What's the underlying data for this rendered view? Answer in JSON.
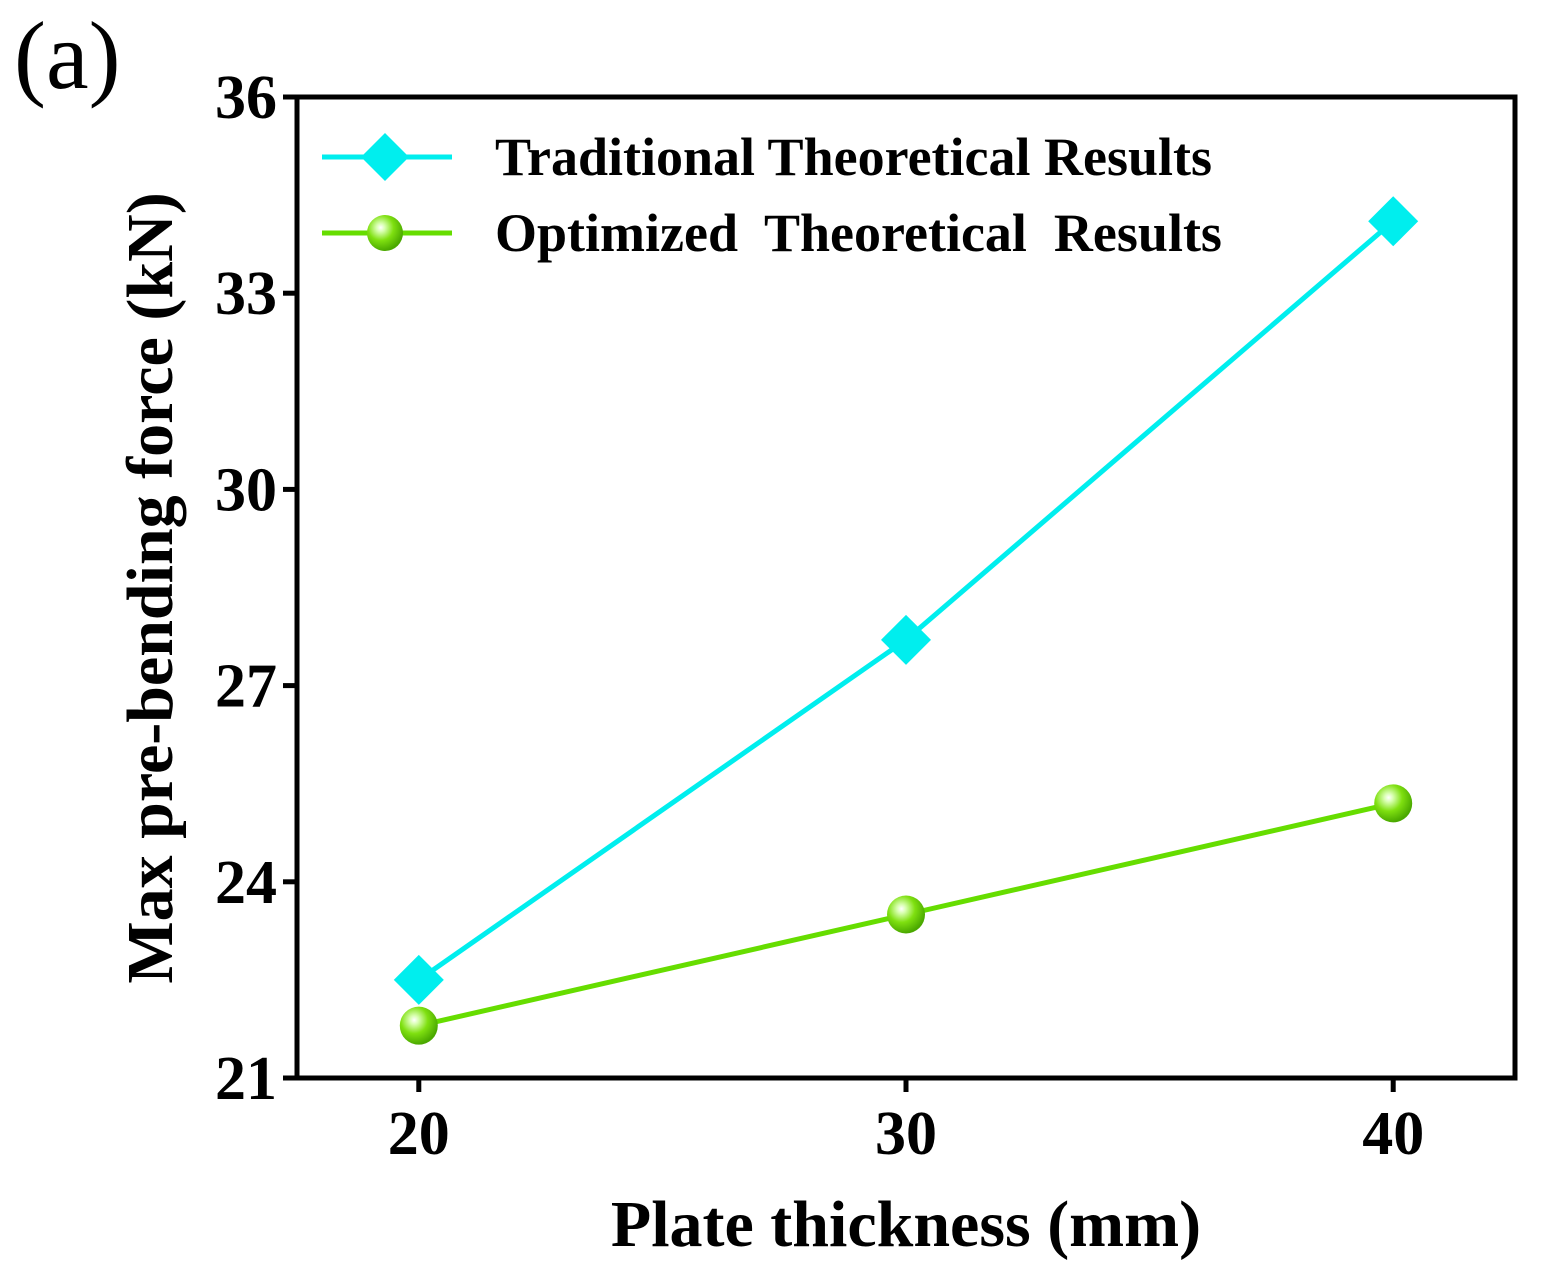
{
  "panel_label": "(a)",
  "chart_data": {
    "type": "line",
    "title": "",
    "xlabel": "Plate thickness (mm)",
    "ylabel": "Max pre-bending force (kN)",
    "x": [
      20,
      30,
      40
    ],
    "x_ticks": [
      20,
      30,
      40
    ],
    "x_tick_labels": [
      "20",
      "30",
      "40"
    ],
    "xlim": [
      17.5,
      42.5
    ],
    "y_ticks": [
      21,
      24,
      27,
      30,
      33,
      36
    ],
    "y_tick_labels": [
      "21",
      "24",
      "27",
      "30",
      "33",
      "36"
    ],
    "ylim": [
      21,
      36
    ],
    "grid": false,
    "legend_position": "top-left",
    "series": [
      {
        "name": "Traditional Theoretical Results",
        "marker": "diamond",
        "color": "#00EEEE",
        "values": [
          22.5,
          27.7,
          34.1
        ]
      },
      {
        "name": "Optimized  Theoretical  Results",
        "marker": "sphere",
        "color": "#66DD00",
        "values": [
          21.8,
          23.5,
          25.2
        ]
      }
    ]
  }
}
